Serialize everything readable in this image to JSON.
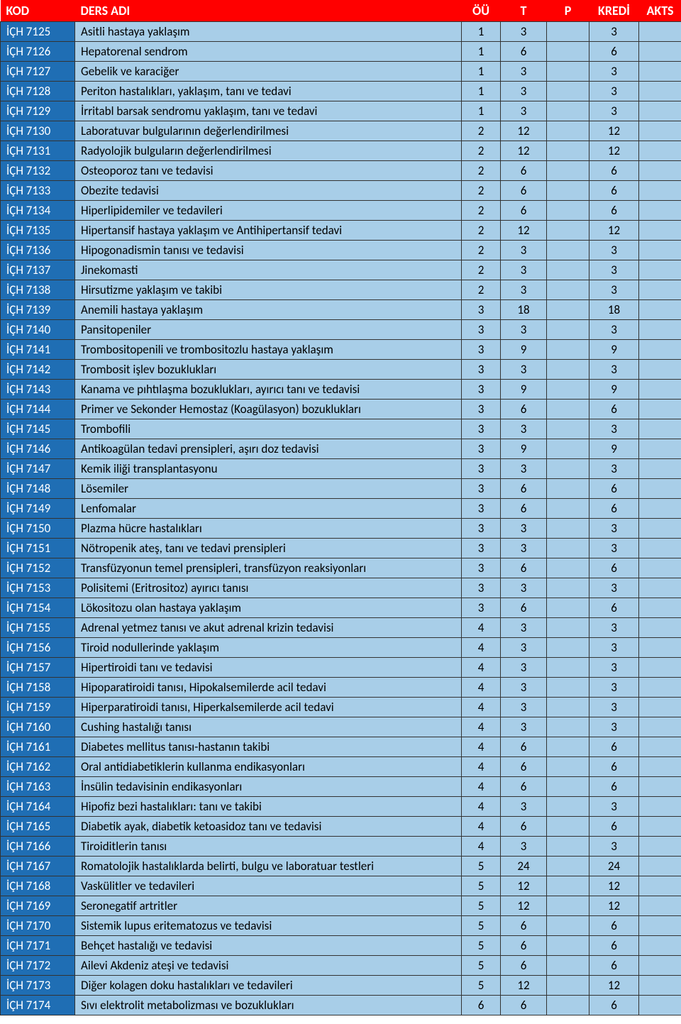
{
  "headers": {
    "kod": "KOD",
    "ders": "DERS ADI",
    "ou": "ÖÜ",
    "t": "T",
    "p": "P",
    "kredi": "KREDİ",
    "akts": "AKTS"
  },
  "colors": {
    "header_bg": "#ff0000",
    "header_fg": "#ffffff",
    "code_bg": "#1f6eb4",
    "code_fg": "#ffffff",
    "row_bg": "#a8cee8",
    "border": "#333333"
  },
  "rows": [
    {
      "kod": "İÇH 7125",
      "ders": "Asitli hastaya yaklaşım",
      "ou": "1",
      "t": "3",
      "p": "",
      "kredi": "3",
      "akts": ""
    },
    {
      "kod": "İÇH 7126",
      "ders": "Hepatorenal sendrom",
      "ou": "1",
      "t": "6",
      "p": "",
      "kredi": "6",
      "akts": ""
    },
    {
      "kod": "İÇH 7127",
      "ders": "Gebelik ve karaciğer",
      "ou": "1",
      "t": "3",
      "p": "",
      "kredi": "3",
      "akts": ""
    },
    {
      "kod": "İÇH 7128",
      "ders": "Periton hastalıkları, yaklaşım, tanı ve tedavi",
      "ou": "1",
      "t": "3",
      "p": "",
      "kredi": "3",
      "akts": ""
    },
    {
      "kod": "İÇH 7129",
      "ders": "İrritabl barsak sendromu yaklaşım, tanı ve tedavi",
      "ou": "1",
      "t": "3",
      "p": "",
      "kredi": "3",
      "akts": ""
    },
    {
      "kod": "İÇH 7130",
      "ders": "Laboratuvar bulgularının değerlendirilmesi",
      "ou": "2",
      "t": "12",
      "p": "",
      "kredi": "12",
      "akts": ""
    },
    {
      "kod": "İÇH 7131",
      "ders": "Radyolojik bulguların değerlendirilmesi",
      "ou": "2",
      "t": "12",
      "p": "",
      "kredi": "12",
      "akts": ""
    },
    {
      "kod": "İÇH 7132",
      "ders": "Osteoporoz tanı ve tedavisi",
      "ou": "2",
      "t": "6",
      "p": "",
      "kredi": "6",
      "akts": ""
    },
    {
      "kod": "İÇH 7133",
      "ders": "Obezite tedavisi",
      "ou": "2",
      "t": "6",
      "p": "",
      "kredi": "6",
      "akts": ""
    },
    {
      "kod": "İÇH 7134",
      "ders": "Hiperlipidemiler ve tedavileri",
      "ou": "2",
      "t": "6",
      "p": "",
      "kredi": "6",
      "akts": ""
    },
    {
      "kod": "İÇH 7135",
      "ders": "Hipertansif hastaya yaklaşım ve Antihipertansif tedavi",
      "ou": "2",
      "t": "12",
      "p": "",
      "kredi": "12",
      "akts": ""
    },
    {
      "kod": "İÇH 7136",
      "ders": "Hipogonadismin tanısı ve tedavisi",
      "ou": "2",
      "t": "3",
      "p": "",
      "kredi": "3",
      "akts": ""
    },
    {
      "kod": "İÇH 7137",
      "ders": "Jinekomasti",
      "ou": "2",
      "t": "3",
      "p": "",
      "kredi": "3",
      "akts": ""
    },
    {
      "kod": "İÇH 7138",
      "ders": "Hirsutizme yaklaşım ve takibi",
      "ou": "2",
      "t": "3",
      "p": "",
      "kredi": "3",
      "akts": ""
    },
    {
      "kod": "İÇH 7139",
      "ders": "Anemili hastaya yaklaşım",
      "ou": "3",
      "t": "18",
      "p": "",
      "kredi": "18",
      "akts": ""
    },
    {
      "kod": "İÇH 7140",
      "ders": "Pansitopeniler",
      "ou": "3",
      "t": "3",
      "p": "",
      "kredi": "3",
      "akts": ""
    },
    {
      "kod": "İÇH 7141",
      "ders": "Trombositopenili ve trombositozlu hastaya yaklaşım",
      "ou": "3",
      "t": "9",
      "p": "",
      "kredi": "9",
      "akts": ""
    },
    {
      "kod": "İÇH 7142",
      "ders": "Trombosit işlev bozuklukları",
      "ou": "3",
      "t": "3",
      "p": "",
      "kredi": "3",
      "akts": ""
    },
    {
      "kod": "İÇH 7143",
      "ders": "Kanama ve pıhtılaşma bozuklukları, ayırıcı tanı ve tedavisi",
      "ou": "3",
      "t": "9",
      "p": "",
      "kredi": "9",
      "akts": ""
    },
    {
      "kod": "İÇH 7144",
      "ders": "Primer ve Sekonder Hemostaz (Koagülasyon) bozuklukları",
      "ou": "3",
      "t": "6",
      "p": "",
      "kredi": "6",
      "akts": ""
    },
    {
      "kod": "İÇH 7145",
      "ders": "Trombofili",
      "ou": "3",
      "t": "3",
      "p": "",
      "kredi": "3",
      "akts": ""
    },
    {
      "kod": "İÇH 7146",
      "ders": "Antikoagülan tedavi prensipleri, aşırı doz tedavisi",
      "ou": "3",
      "t": "9",
      "p": "",
      "kredi": "9",
      "akts": ""
    },
    {
      "kod": "İÇH 7147",
      "ders": "Kemik iliği transplantasyonu",
      "ou": "3",
      "t": "3",
      "p": "",
      "kredi": "3",
      "akts": ""
    },
    {
      "kod": "İÇH 7148",
      "ders": "Lösemiler",
      "ou": "3",
      "t": "6",
      "p": "",
      "kredi": "6",
      "akts": ""
    },
    {
      "kod": "İÇH 7149",
      "ders": "Lenfomalar",
      "ou": "3",
      "t": "6",
      "p": "",
      "kredi": "6",
      "akts": ""
    },
    {
      "kod": "İÇH 7150",
      "ders": "Plazma hücre hastalıkları",
      "ou": "3",
      "t": "3",
      "p": "",
      "kredi": "3",
      "akts": ""
    },
    {
      "kod": "İÇH 7151",
      "ders": "Nötropenik ateş, tanı ve tedavi prensipleri",
      "ou": "3",
      "t": "3",
      "p": "",
      "kredi": "3",
      "akts": ""
    },
    {
      "kod": "İÇH 7152",
      "ders": "Transfüzyonun temel prensipleri, transfüzyon reaksiyonları",
      "ou": "3",
      "t": "6",
      "p": "",
      "kredi": "6",
      "akts": ""
    },
    {
      "kod": "İÇH 7153",
      "ders": "Polisitemi (Eritrositoz) ayırıcı tanısı",
      "ou": "3",
      "t": "3",
      "p": "",
      "kredi": "3",
      "akts": ""
    },
    {
      "kod": "İÇH 7154",
      "ders": "Lökositozu olan hastaya yaklaşım",
      "ou": "3",
      "t": "6",
      "p": "",
      "kredi": "6",
      "akts": ""
    },
    {
      "kod": "İÇH 7155",
      "ders": "Adrenal yetmez tanısı ve akut adrenal krizin tedavisi",
      "ou": "4",
      "t": "3",
      "p": "",
      "kredi": "3",
      "akts": ""
    },
    {
      "kod": "İÇH 7156",
      "ders": "Tiroid nodullerinde yaklaşım",
      "ou": "4",
      "t": "3",
      "p": "",
      "kredi": "3",
      "akts": ""
    },
    {
      "kod": "İÇH 7157",
      "ders": "Hipertiroidi tanı ve tedavisi",
      "ou": "4",
      "t": "3",
      "p": "",
      "kredi": "3",
      "akts": ""
    },
    {
      "kod": "İÇH 7158",
      "ders": "Hipoparatiroidi tanısı, Hipokalsemilerde acil tedavi",
      "ou": "4",
      "t": "3",
      "p": "",
      "kredi": "3",
      "akts": ""
    },
    {
      "kod": "İÇH 7159",
      "ders": "Hiperparatiroidi tanısı, Hiperkalsemilerde acil tedavi",
      "ou": "4",
      "t": "3",
      "p": "",
      "kredi": "3",
      "akts": ""
    },
    {
      "kod": "İÇH 7160",
      "ders": "Cushing hastalığı tanısı",
      "ou": "4",
      "t": "3",
      "p": "",
      "kredi": "3",
      "akts": ""
    },
    {
      "kod": "İÇH 7161",
      "ders": "Diabetes mellitus tanısı-hastanın takibi",
      "ou": "4",
      "t": "6",
      "p": "",
      "kredi": "6",
      "akts": ""
    },
    {
      "kod": "İÇH 7162",
      "ders": "Oral antidiabetiklerin kullanma endikasyonları",
      "ou": "4",
      "t": "6",
      "p": "",
      "kredi": "6",
      "akts": ""
    },
    {
      "kod": "İÇH 7163",
      "ders": "İnsülin tedavisinin endikasyonları",
      "ou": "4",
      "t": "6",
      "p": "",
      "kredi": "6",
      "akts": ""
    },
    {
      "kod": "İÇH 7164",
      "ders": "Hipofiz bezi hastalıkları: tanı ve takibi",
      "ou": "4",
      "t": "3",
      "p": "",
      "kredi": "3",
      "akts": ""
    },
    {
      "kod": "İÇH 7165",
      "ders": "Diabetik ayak,   diabetik ketoasidoz tanı ve tedavisi",
      "ou": "4",
      "t": "6",
      "p": "",
      "kredi": "6",
      "akts": ""
    },
    {
      "kod": "İÇH 7166",
      "ders": "Tiroiditlerin tanısı",
      "ou": "4",
      "t": "3",
      "p": "",
      "kredi": "3",
      "akts": ""
    },
    {
      "kod": "İÇH 7167",
      "ders": "Romatolojik hastalıklarda belirti, bulgu ve laboratuar testleri",
      "ou": "5",
      "t": "24",
      "p": "",
      "kredi": "24",
      "akts": ""
    },
    {
      "kod": "İÇH 7168",
      "ders": "Vaskülitler ve tedavileri",
      "ou": "5",
      "t": "12",
      "p": "",
      "kredi": "12",
      "akts": ""
    },
    {
      "kod": "İÇH 7169",
      "ders": "Seronegatif artritler",
      "ou": "5",
      "t": "12",
      "p": "",
      "kredi": "12",
      "akts": ""
    },
    {
      "kod": "İÇH 7170",
      "ders": "Sistemik lupus eritematozus ve tedavisi",
      "ou": "5",
      "t": "6",
      "p": "",
      "kredi": "6",
      "akts": ""
    },
    {
      "kod": "İÇH 7171",
      "ders": "Behçet hastalığı ve tedavisi",
      "ou": "5",
      "t": "6",
      "p": "",
      "kredi": "6",
      "akts": ""
    },
    {
      "kod": "İÇH 7172",
      "ders": "Ailevi Akdeniz ateşi ve tedavisi",
      "ou": "5",
      "t": "6",
      "p": "",
      "kredi": "6",
      "akts": ""
    },
    {
      "kod": "İÇH 7173",
      "ders": "Diğer kolagen doku hastalıkları ve tedavileri",
      "ou": "5",
      "t": "12",
      "p": "",
      "kredi": "12",
      "akts": ""
    },
    {
      "kod": "İÇH 7174",
      "ders": "Sıvı elektrolit metabolizması ve bozuklukları",
      "ou": "6",
      "t": "6",
      "p": "",
      "kredi": "6",
      "akts": ""
    }
  ]
}
